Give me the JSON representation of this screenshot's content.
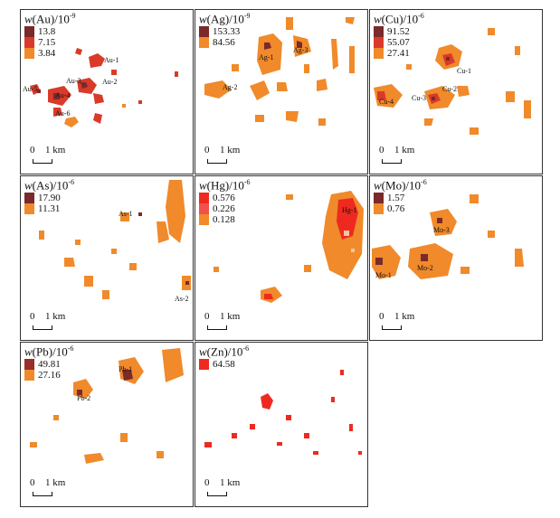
{
  "scale_bar": {
    "zero": "0",
    "dist": "1 km"
  },
  "colors": {
    "dark": "#7a2a2a",
    "red": "#d93a2a",
    "orange": "#f08a2a",
    "bright_red": "#ee2a20"
  },
  "panels": [
    {
      "element": "Au",
      "exponent": "-9",
      "legend": [
        "13.8",
        "7.15",
        "3.84"
      ],
      "labels": [
        "Au-1",
        "Au-2",
        "Au-3",
        "Au-4",
        "Au-5",
        "Au-6"
      ]
    },
    {
      "element": "Ag",
      "exponent": "-9",
      "legend": [
        "153.33",
        "84.56"
      ],
      "labels": [
        "Ag-1",
        "Ag-2",
        "Ag-3"
      ]
    },
    {
      "element": "Cu",
      "exponent": "-6",
      "legend": [
        "91.52",
        "55.07",
        "27.41"
      ],
      "labels": [
        "Cu-1",
        "Cu-2",
        "Cu-3",
        "Cu-4"
      ]
    },
    {
      "element": "As",
      "exponent": "-6",
      "legend": [
        "17.90",
        "11.31"
      ],
      "labels": [
        "As-1",
        "As-2"
      ]
    },
    {
      "element": "Hg",
      "exponent": "-6",
      "legend": [
        "0.576",
        "0.226",
        "0.128"
      ],
      "labels": [
        "Hg-1"
      ]
    },
    {
      "element": "Mo",
      "exponent": "-6",
      "legend": [
        "1.57",
        "0.76"
      ],
      "labels": [
        "Mo-1",
        "Mo-2",
        "Mo-3"
      ]
    },
    {
      "element": "Pb",
      "exponent": "-6",
      "legend": [
        "49.81",
        "27.16"
      ],
      "labels": [
        "Pb-1",
        "Pb-2"
      ]
    },
    {
      "element": "Zn",
      "exponent": "-6",
      "legend": [
        "64.58"
      ],
      "labels": []
    }
  ]
}
